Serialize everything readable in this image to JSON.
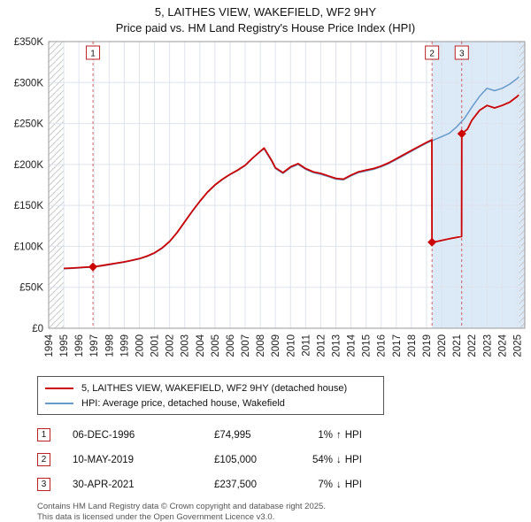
{
  "chart_data": {
    "type": "line",
    "title": "5, LAITHES VIEW, WAKEFIELD, WF2 9HY",
    "subtitle": "Price paid vs. HM Land Registry's House Price Index (HPI)",
    "x_domain": [
      1994,
      2025.5
    ],
    "y_domain": [
      0,
      350000
    ],
    "y_ticks": [
      0,
      50000,
      100000,
      150000,
      200000,
      250000,
      300000,
      350000
    ],
    "y_tick_labels": [
      "£0",
      "£50K",
      "£100K",
      "£150K",
      "£200K",
      "£250K",
      "£300K",
      "£350K"
    ],
    "x_ticks": [
      1994,
      1995,
      1996,
      1997,
      1998,
      1999,
      2000,
      2001,
      2002,
      2003,
      2004,
      2005,
      2006,
      2007,
      2008,
      2009,
      2010,
      2011,
      2012,
      2013,
      2014,
      2015,
      2016,
      2017,
      2018,
      2019,
      2020,
      2021,
      2022,
      2023,
      2024,
      2025
    ],
    "grid": true,
    "legend_position": "below",
    "hatch_regions": [
      [
        1994,
        1995
      ],
      [
        2025.12,
        2025.5
      ]
    ],
    "shaded_region": [
      2019.36,
      2025.5
    ],
    "colors": {
      "red": "#cc0000",
      "blue": "#6699cc",
      "shade": "#dce9f6",
      "grid": "#dde3ee",
      "hatch": "#c8c8c8",
      "frame": "#999999",
      "box_border": "#bb2222"
    },
    "series": [
      {
        "name": "5, LAITHES VIEW, WAKEFIELD, WF2 9HY (detached house)",
        "color": "#cc0000",
        "points": [
          [
            1995.0,
            73000
          ],
          [
            1995.5,
            73500
          ],
          [
            1996.0,
            74000
          ],
          [
            1996.5,
            74600
          ],
          [
            1996.93,
            74995
          ],
          [
            1997.5,
            76500
          ],
          [
            1998.0,
            78000
          ],
          [
            1998.5,
            79500
          ],
          [
            1999.0,
            81000
          ],
          [
            1999.5,
            83000
          ],
          [
            2000.0,
            85000
          ],
          [
            2000.5,
            88000
          ],
          [
            2001.0,
            92000
          ],
          [
            2001.5,
            98000
          ],
          [
            2002.0,
            106000
          ],
          [
            2002.5,
            117000
          ],
          [
            2003.0,
            130000
          ],
          [
            2003.5,
            143000
          ],
          [
            2004.0,
            155000
          ],
          [
            2004.5,
            166000
          ],
          [
            2005.0,
            175000
          ],
          [
            2005.5,
            182000
          ],
          [
            2006.0,
            188000
          ],
          [
            2006.5,
            193000
          ],
          [
            2007.0,
            199000
          ],
          [
            2007.5,
            208000
          ],
          [
            2008.0,
            216000
          ],
          [
            2008.25,
            220000
          ],
          [
            2008.75,
            205000
          ],
          [
            2009.0,
            196000
          ],
          [
            2009.5,
            190000
          ],
          [
            2010.0,
            197000
          ],
          [
            2010.5,
            201000
          ],
          [
            2011.0,
            195000
          ],
          [
            2011.5,
            191000
          ],
          [
            2012.0,
            189000
          ],
          [
            2012.5,
            186000
          ],
          [
            2013.0,
            183000
          ],
          [
            2013.5,
            182000
          ],
          [
            2014.0,
            187000
          ],
          [
            2014.5,
            191000
          ],
          [
            2015.0,
            193000
          ],
          [
            2015.5,
            195000
          ],
          [
            2016.0,
            198000
          ],
          [
            2016.5,
            202000
          ],
          [
            2017.0,
            207000
          ],
          [
            2017.5,
            212000
          ],
          [
            2018.0,
            217000
          ],
          [
            2018.5,
            222000
          ],
          [
            2019.0,
            227000
          ],
          [
            2019.35,
            230000
          ],
          [
            2019.36,
            105000
          ],
          [
            2019.7,
            106000
          ],
          [
            2020.2,
            108000
          ],
          [
            2020.7,
            110000
          ],
          [
            2021.32,
            112000
          ],
          [
            2021.33,
            237500
          ],
          [
            2021.7,
            243000
          ],
          [
            2022.0,
            254000
          ],
          [
            2022.5,
            266000
          ],
          [
            2023.0,
            272000
          ],
          [
            2023.5,
            269000
          ],
          [
            2024.0,
            272000
          ],
          [
            2024.5,
            276000
          ],
          [
            2025.0,
            283000
          ],
          [
            2025.1,
            285000
          ]
        ]
      },
      {
        "name": "HPI: Average price, detached house, Wakefield",
        "color": "#6699cc",
        "points": [
          [
            1995.0,
            72500
          ],
          [
            1995.5,
            73000
          ],
          [
            1996.0,
            73600
          ],
          [
            1996.5,
            74200
          ],
          [
            1997.0,
            75000
          ],
          [
            1997.5,
            76000
          ],
          [
            1998.0,
            77600
          ],
          [
            1998.5,
            79100
          ],
          [
            1999.0,
            80600
          ],
          [
            1999.5,
            82600
          ],
          [
            2000.0,
            84600
          ],
          [
            2000.5,
            87600
          ],
          [
            2001.0,
            91600
          ],
          [
            2001.5,
            97600
          ],
          [
            2002.0,
            105600
          ],
          [
            2002.5,
            116600
          ],
          [
            2003.0,
            129600
          ],
          [
            2003.5,
            142600
          ],
          [
            2004.0,
            154600
          ],
          [
            2004.5,
            165600
          ],
          [
            2005.0,
            174600
          ],
          [
            2005.5,
            181600
          ],
          [
            2006.0,
            187600
          ],
          [
            2006.5,
            192600
          ],
          [
            2007.0,
            198600
          ],
          [
            2007.5,
            207600
          ],
          [
            2008.0,
            215600
          ],
          [
            2008.25,
            219000
          ],
          [
            2008.75,
            204000
          ],
          [
            2009.0,
            195000
          ],
          [
            2009.5,
            189000
          ],
          [
            2010.0,
            196000
          ],
          [
            2010.5,
            200000
          ],
          [
            2011.0,
            194000
          ],
          [
            2011.5,
            190000
          ],
          [
            2012.0,
            188000
          ],
          [
            2012.5,
            185000
          ],
          [
            2013.0,
            182000
          ],
          [
            2013.5,
            181000
          ],
          [
            2014.0,
            186000
          ],
          [
            2014.5,
            190000
          ],
          [
            2015.0,
            192000
          ],
          [
            2015.5,
            194000
          ],
          [
            2016.0,
            197000
          ],
          [
            2016.5,
            201000
          ],
          [
            2017.0,
            206000
          ],
          [
            2017.5,
            211000
          ],
          [
            2018.0,
            216000
          ],
          [
            2018.5,
            221000
          ],
          [
            2019.0,
            226000
          ],
          [
            2019.5,
            230000
          ],
          [
            2020.0,
            234000
          ],
          [
            2020.5,
            238000
          ],
          [
            2021.0,
            246000
          ],
          [
            2021.5,
            256000
          ],
          [
            2022.0,
            270000
          ],
          [
            2022.5,
            283000
          ],
          [
            2023.0,
            293000
          ],
          [
            2023.5,
            290000
          ],
          [
            2024.0,
            293000
          ],
          [
            2024.5,
            298000
          ],
          [
            2025.0,
            305000
          ],
          [
            2025.1,
            307000
          ]
        ]
      }
    ],
    "sale_markers": [
      {
        "label": "1",
        "x": 1996.93,
        "y": 74995
      },
      {
        "label": "2",
        "x": 2019.36,
        "y": 105000
      },
      {
        "label": "3",
        "x": 2021.33,
        "y": 237500
      }
    ]
  },
  "transactions": [
    {
      "num": "1",
      "date": "06-DEC-1996",
      "price": "£74,995",
      "hpi_pct": "1%",
      "hpi_arrow": "↑",
      "hpi_label": "HPI"
    },
    {
      "num": "2",
      "date": "10-MAY-2019",
      "price": "£105,000",
      "hpi_pct": "54%",
      "hpi_arrow": "↓",
      "hpi_label": "HPI"
    },
    {
      "num": "3",
      "date": "30-APR-2021",
      "price": "£237,500",
      "hpi_pct": "7%",
      "hpi_arrow": "↓",
      "hpi_label": "HPI"
    }
  ],
  "footer": {
    "line1": "Contains HM Land Registry data © Crown copyright and database right 2025.",
    "line2": "This data is licensed under the Open Government Licence v3.0."
  }
}
